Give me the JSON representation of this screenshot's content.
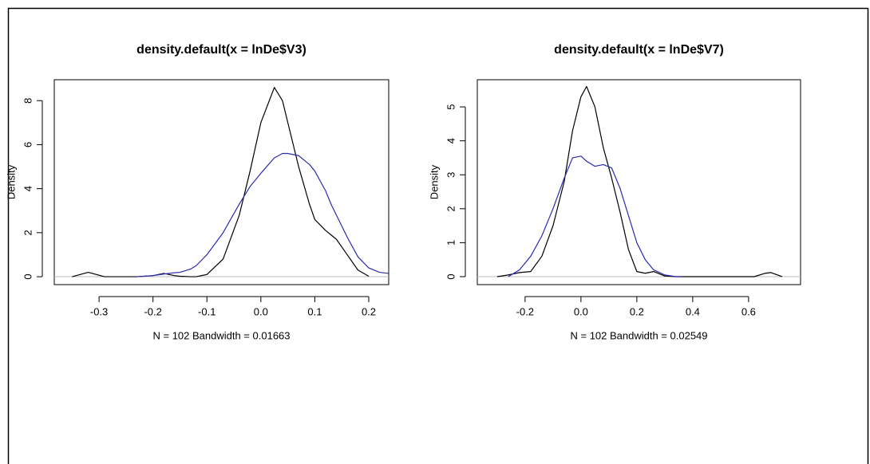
{
  "chart_data": [
    {
      "type": "line",
      "title": "density.default(x = lnDe$V3)",
      "x_label": "N = 102   Bandwidth = 0.01663",
      "y_label": "Density",
      "x": [
        -0.35,
        -0.32,
        -0.29,
        -0.24,
        -0.23,
        -0.2,
        -0.18,
        -0.16,
        -0.15,
        -0.13,
        -0.12,
        -0.1,
        -0.07,
        -0.04,
        -0.02,
        0,
        0.025,
        0.04,
        0.05,
        0.07,
        0.09,
        0.1,
        0.12,
        0.13,
        0.14,
        0.16,
        0.18,
        0.2,
        0.22,
        0.237
      ],
      "series": [
        {
          "color": "#000000",
          "values": [
            0,
            0.2,
            0,
            0,
            0,
            0.05,
            0.15,
            0.05,
            0.02,
            0,
            0,
            0.1,
            0.8,
            2.8,
            4.8,
            7.0,
            8.6,
            8.0,
            7.0,
            5.0,
            3.3,
            2.6,
            2.1,
            1.9,
            1.7,
            1.0,
            0.3,
            0.02,
            null,
            null
          ]
        },
        {
          "color": "#2b2bb0",
          "values": [
            null,
            null,
            null,
            null,
            0,
            0.05,
            0.12,
            0.18,
            0.2,
            0.35,
            0.5,
            1.0,
            2.0,
            3.3,
            4.1,
            4.7,
            5.4,
            5.6,
            5.6,
            5.5,
            5.1,
            4.8,
            3.9,
            3.3,
            2.8,
            1.8,
            0.9,
            0.4,
            0.2,
            0.15
          ]
        }
      ],
      "xlim": [
        -0.383,
        0.237
      ],
      "xticks": [
        -0.3,
        -0.2,
        -0.1,
        {
          "value": 0,
          "label": "0.0"
        },
        0.1,
        0.2
      ],
      "ylim": [
        -0.36,
        8.95
      ],
      "yticks": [
        0,
        2,
        4,
        6,
        8
      ],
      "zero_line": true
    },
    {
      "type": "line",
      "title": "density.default(x = lnDe$V7)",
      "x_label": "N = 102   Bandwidth = 0.02549",
      "y_label": "Density",
      "x": [
        -0.3,
        -0.26,
        -0.22,
        -0.18,
        -0.14,
        -0.1,
        -0.06,
        -0.03,
        0,
        0.02,
        0.05,
        0.08,
        0.11,
        0.14,
        0.17,
        0.2,
        0.23,
        0.26,
        0.3,
        0.34,
        0.36,
        0.62,
        0.66,
        0.68,
        0.72
      ],
      "series": [
        {
          "color": "#000000",
          "values": [
            0,
            0.05,
            0.12,
            0.15,
            0.6,
            1.5,
            2.8,
            4.3,
            5.3,
            5.6,
            5.0,
            3.8,
            2.9,
            1.9,
            0.8,
            0.15,
            0.1,
            0.15,
            0.02,
            0,
            0,
            0,
            0.1,
            0.12,
            0
          ]
        },
        {
          "color": "#2b2bb0",
          "values": [
            null,
            0,
            0.2,
            0.6,
            1.2,
            2.0,
            2.9,
            3.5,
            3.55,
            3.4,
            3.25,
            3.3,
            3.2,
            2.6,
            1.8,
            1.0,
            0.5,
            0.2,
            0.05,
            0,
            0,
            null,
            null,
            null,
            null
          ]
        }
      ],
      "xlim": [
        -0.371,
        0.786
      ],
      "xticks": [
        -0.2,
        {
          "value": 0,
          "label": "0.0"
        },
        0.2,
        0.4,
        0.6
      ],
      "ylim": [
        -0.235,
        5.8
      ],
      "yticks": [
        0,
        1,
        2,
        3,
        4,
        5
      ],
      "zero_line": true
    }
  ]
}
